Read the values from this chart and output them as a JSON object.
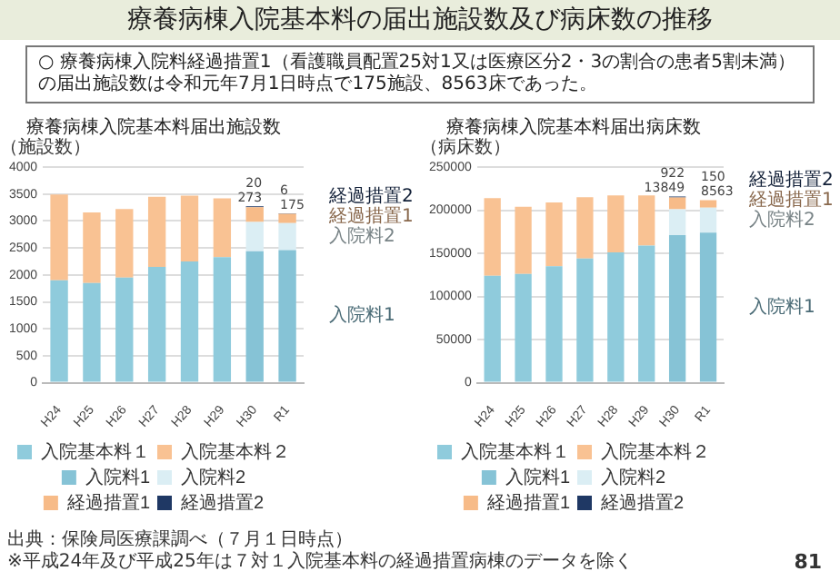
{
  "chart_data": [
    {
      "type": "other",
      "title": "療養病棟入院基本料の届出施設数及び病床数の推移",
      "annotations": [
        "○ 療養病棟入院料経過措置1（看護職員配置25対1又は医療区分2・3の割合の患者5割未満）の届出施設数は令和元年7月1日時点で175施設、8563床であった。"
      ]
    },
    {
      "type": "bar",
      "title": "療養病棟入院基本料届出施設数",
      "ylabel": "（施設数）",
      "categories": [
        "H24",
        "H25",
        "H26",
        "H27",
        "H28",
        "H29",
        "H30",
        "R1"
      ],
      "stacked": true,
      "ylim": [
        0,
        4000
      ],
      "yticks": [
        0,
        500,
        1000,
        1500,
        2000,
        2500,
        3000,
        3500,
        4000
      ],
      "grid": "y",
      "legend": "bottom",
      "series": [
        {
          "name": "入院基本料１",
          "color": "#8fcbdc",
          "values": [
            1900,
            1850,
            1950,
            2150,
            2250,
            2330,
            null,
            null
          ]
        },
        {
          "name": "入院基本料２",
          "color": "#f9c293",
          "values": [
            1590,
            1310,
            1270,
            1300,
            1220,
            1090,
            null,
            null
          ]
        },
        {
          "name": "入院料1",
          "color": "#86c3d6",
          "values": [
            null,
            null,
            null,
            null,
            null,
            null,
            2440,
            2460
          ]
        },
        {
          "name": "入院料2",
          "color": "#dbeef4",
          "values": [
            null,
            null,
            null,
            null,
            null,
            null,
            540,
            500
          ]
        },
        {
          "name": "経過措置1",
          "color": "#f7bb88",
          "values": [
            null,
            null,
            null,
            null,
            null,
            null,
            273,
            175
          ],
          "value_labels": [
            null,
            null,
            null,
            null,
            null,
            null,
            "273",
            "175"
          ]
        },
        {
          "name": "経過措置2",
          "color": "#1f3864",
          "values": [
            null,
            null,
            null,
            null,
            null,
            null,
            20,
            6
          ],
          "value_labels": [
            null,
            null,
            null,
            null,
            null,
            null,
            "20",
            "6"
          ]
        }
      ],
      "annotations": [
        "出典：保険局医療課調べ（７月１日時点）",
        "※平成24年及び平成25年は７対１入院基本料の経過措置病棟のデータを除く"
      ]
    },
    {
      "type": "bar",
      "title": "療養病棟入院基本料届出病床数",
      "ylabel": "（病床数）",
      "categories": [
        "H24",
        "H25",
        "H26",
        "H27",
        "H28",
        "H29",
        "H30",
        "R1"
      ],
      "stacked": true,
      "ylim": [
        0,
        250000
      ],
      "yticks": [
        0,
        50000,
        100000,
        150000,
        200000,
        250000
      ],
      "grid": "y",
      "legend": "bottom",
      "series": [
        {
          "name": "入院基本料１",
          "color": "#8fcbdc",
          "values": [
            124000,
            126000,
            135000,
            144000,
            151000,
            159000,
            null,
            null
          ]
        },
        {
          "name": "入院基本料２",
          "color": "#f9c293",
          "values": [
            90000,
            78000,
            74000,
            71000,
            66000,
            58000,
            null,
            null
          ]
        },
        {
          "name": "入院料1",
          "color": "#86c3d6",
          "values": [
            null,
            null,
            null,
            null,
            null,
            null,
            171000,
            174000
          ]
        },
        {
          "name": "入院料2",
          "color": "#dbeef4",
          "values": [
            null,
            null,
            null,
            null,
            null,
            null,
            30000,
            29000
          ]
        },
        {
          "name": "経過措置1",
          "color": "#f7bb88",
          "values": [
            null,
            null,
            null,
            null,
            null,
            null,
            13849,
            8563
          ],
          "value_labels": [
            null,
            null,
            null,
            null,
            null,
            null,
            "13849",
            "8563"
          ]
        },
        {
          "name": "経過措置2",
          "color": "#1f3864",
          "values": [
            null,
            null,
            null,
            null,
            null,
            null,
            922,
            150
          ],
          "value_labels": [
            null,
            null,
            null,
            null,
            null,
            null,
            "922",
            "150"
          ]
        }
      ],
      "annotations": [
        "81"
      ]
    }
  ]
}
